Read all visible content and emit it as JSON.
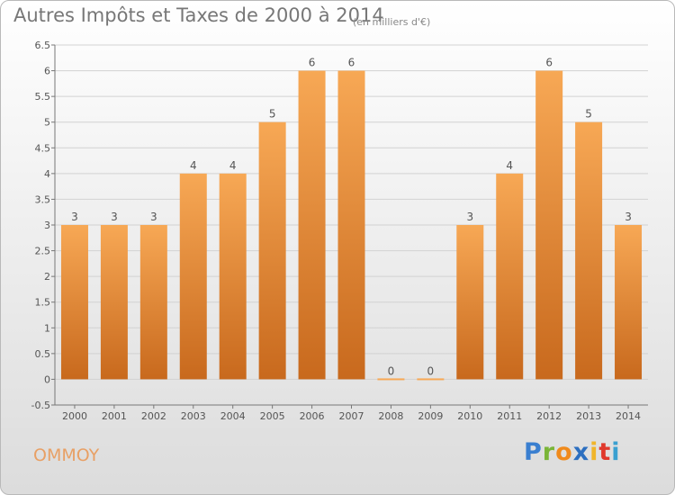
{
  "header": {
    "title": "Autres Impôts et Taxes de 2000 à 2014",
    "unit": "(en milliers d'€)"
  },
  "footer": {
    "commune": "OMMOY",
    "logo": [
      "P",
      "r",
      "o",
      "x",
      "i",
      "t",
      "i"
    ]
  },
  "colors": {
    "bar_top": "#f7a855",
    "bar_bottom": "#c8691d",
    "commune": "#e8a065",
    "logo": [
      "#3a7fd0",
      "#7ab538",
      "#f08a1c",
      "#2c6fc0",
      "#f0b52a",
      "#e0392c",
      "#3aa0d0"
    ]
  },
  "chart_data": {
    "type": "bar",
    "title": "Autres Impôts et Taxes de 2000 à 2014",
    "subtitle": "(en milliers d'€)",
    "categories": [
      "2000",
      "2001",
      "2002",
      "2003",
      "2004",
      "2005",
      "2006",
      "2007",
      "2008",
      "2009",
      "2010",
      "2011",
      "2012",
      "2013",
      "2014"
    ],
    "values": [
      3,
      3,
      3,
      4,
      4,
      5,
      6,
      6,
      0,
      0,
      3,
      4,
      6,
      5,
      3
    ],
    "data_labels": [
      "3",
      "3",
      "3",
      "4",
      "4",
      "5",
      "6",
      "6",
      "0",
      "0",
      "3",
      "4",
      "6",
      "5",
      "3"
    ],
    "ylim": [
      -0.5,
      6.5
    ],
    "yticks": [
      -0.5,
      0,
      0.5,
      1,
      1.5,
      2,
      2.5,
      3,
      3.5,
      4,
      4.5,
      5,
      5.5,
      6,
      6.5
    ],
    "ytick_labels": [
      "-0.5",
      "0",
      "0.5",
      "1",
      "1.5",
      "2",
      "2.5",
      "3",
      "3.5",
      "4",
      "4.5",
      "5",
      "5.5",
      "6",
      "6.5"
    ],
    "xlabel": "",
    "ylabel": "",
    "grid": "horizontal"
  }
}
